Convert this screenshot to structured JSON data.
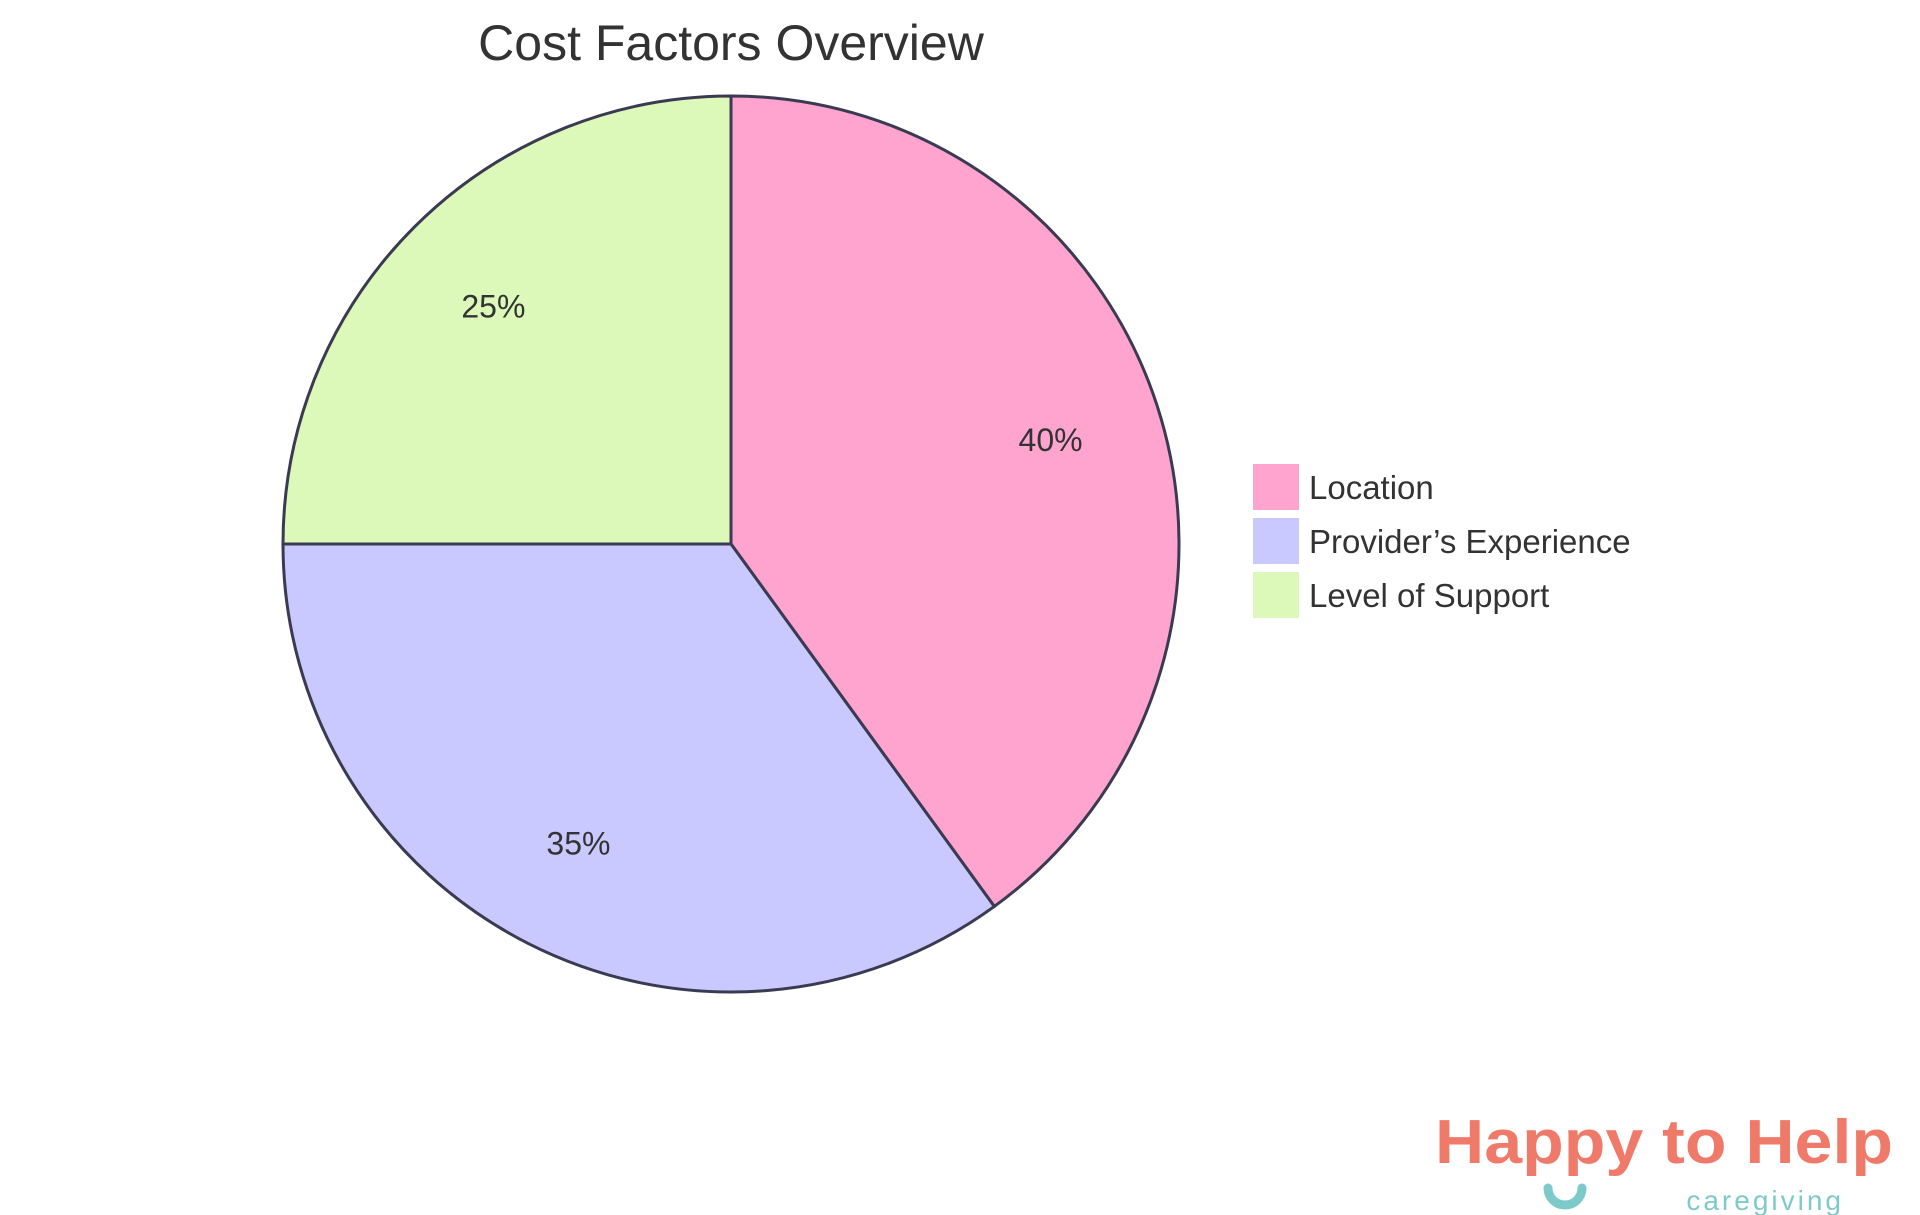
{
  "chart_data": {
    "type": "pie",
    "title": "Cost Factors Overview",
    "slices": [
      {
        "label": "Location",
        "value": 40,
        "display": "40%",
        "color": "#FFA3CF"
      },
      {
        "label": "Provider’s Experience",
        "value": 35,
        "display": "35%",
        "color": "#C9C9FF"
      },
      {
        "label": "Level of Support",
        "value": 25,
        "display": "25%",
        "color": "#DCF9BA"
      }
    ],
    "start": "top",
    "direction": "clockwise",
    "stroke_color": "#3A3A52",
    "legend_placement": "right"
  },
  "logo": {
    "text_main": "Happy to Help",
    "text_sub": "caregiving",
    "color_main": "#F07A6A",
    "color_accent": "#7ECACA"
  }
}
